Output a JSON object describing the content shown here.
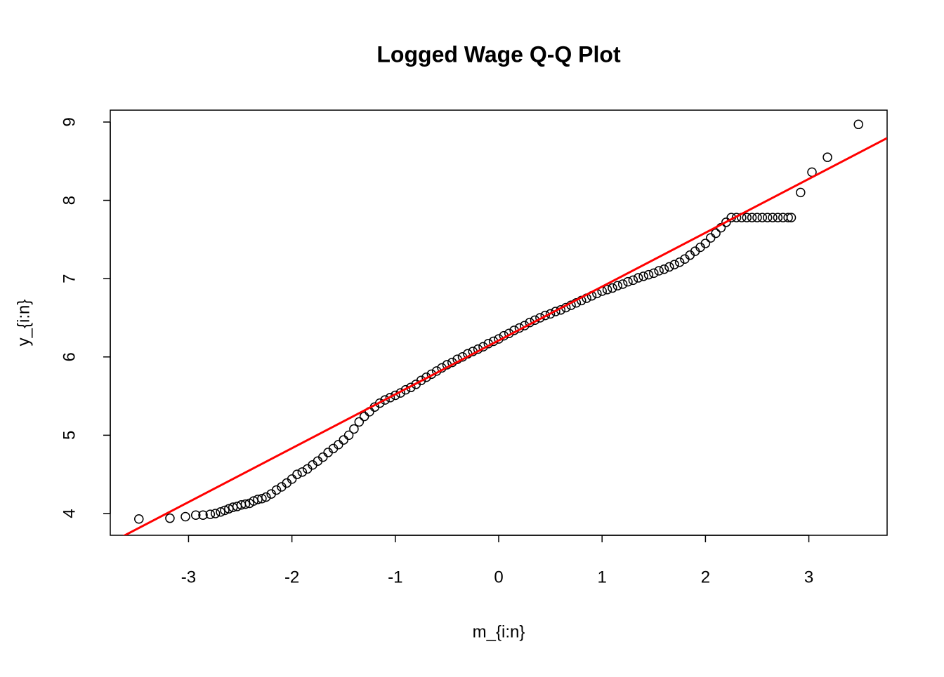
{
  "chart_data": {
    "type": "scatter",
    "title": "Logged Wage Q-Q Plot",
    "x_label": "m_{i:n}",
    "y_label": "y_{i:n}",
    "xlim": [
      -3.757,
      3.757
    ],
    "ylim": [
      3.722,
      9.152
    ],
    "xticks": [
      -3,
      -2,
      -1,
      0,
      1,
      2,
      3
    ],
    "yticks": [
      4,
      5,
      6,
      7,
      8,
      9
    ],
    "series": [
      {
        "color": "#000000",
        "x": [
          -3.48,
          -3.18,
          -3.03,
          -2.93,
          -2.86,
          -2.79,
          -2.74,
          -2.69,
          -2.65,
          -2.61,
          -2.57,
          -2.53,
          -2.49,
          -2.45,
          -2.41,
          -2.37,
          -2.33,
          -2.29,
          -2.25,
          -2.2,
          -2.15,
          -2.1,
          -2.05,
          -2.0,
          -1.95,
          -1.9,
          -1.85,
          -1.8,
          -1.75,
          -1.7,
          -1.65,
          -1.6,
          -1.55,
          -1.5,
          -1.45,
          -1.4,
          -1.35,
          -1.3,
          -1.25,
          -1.2,
          -1.15,
          -1.1,
          -1.05,
          -1.0,
          -0.95,
          -0.9,
          -0.85,
          -0.8,
          -0.75,
          -0.7,
          -0.65,
          -0.6,
          -0.55,
          -0.5,
          -0.45,
          -0.4,
          -0.35,
          -0.3,
          -0.25,
          -0.2,
          -0.15,
          -0.1,
          -0.05,
          0,
          0.05,
          0.1,
          0.15,
          0.2,
          0.25,
          0.3,
          0.35,
          0.4,
          0.45,
          0.5,
          0.55,
          0.6,
          0.65,
          0.7,
          0.75,
          0.8,
          0.85,
          0.9,
          0.95,
          1.0,
          1.05,
          1.1,
          1.15,
          1.2,
          1.25,
          1.3,
          1.35,
          1.4,
          1.45,
          1.5,
          1.55,
          1.6,
          1.65,
          1.7,
          1.75,
          1.8,
          1.85,
          1.9,
          1.95,
          2.0,
          2.05,
          2.1,
          2.15,
          2.2,
          2.25,
          2.3,
          2.35,
          2.4,
          2.45,
          2.5,
          2.55,
          2.6,
          2.65,
          2.7,
          2.75,
          2.8,
          2.83,
          2.92,
          3.03,
          3.18,
          3.48
        ],
        "values": [
          3.93,
          3.94,
          3.96,
          3.98,
          3.98,
          3.99,
          4.0,
          4.02,
          4.04,
          4.06,
          4.08,
          4.09,
          4.11,
          4.12,
          4.13,
          4.16,
          4.18,
          4.19,
          4.21,
          4.25,
          4.3,
          4.34,
          4.39,
          4.44,
          4.5,
          4.53,
          4.57,
          4.62,
          4.67,
          4.72,
          4.78,
          4.83,
          4.88,
          4.94,
          5.0,
          5.08,
          5.17,
          5.24,
          5.3,
          5.36,
          5.41,
          5.45,
          5.48,
          5.51,
          5.54,
          5.58,
          5.61,
          5.65,
          5.7,
          5.74,
          5.78,
          5.82,
          5.86,
          5.9,
          5.93,
          5.97,
          6.0,
          6.04,
          6.07,
          6.1,
          6.13,
          6.17,
          6.2,
          6.23,
          6.27,
          6.3,
          6.34,
          6.37,
          6.4,
          6.44,
          6.47,
          6.5,
          6.53,
          6.55,
          6.58,
          6.6,
          6.63,
          6.66,
          6.69,
          6.72,
          6.75,
          6.78,
          6.81,
          6.84,
          6.86,
          6.88,
          6.91,
          6.93,
          6.96,
          6.98,
          7.01,
          7.03,
          7.05,
          7.07,
          7.1,
          7.12,
          7.15,
          7.18,
          7.21,
          7.25,
          7.3,
          7.35,
          7.4,
          7.45,
          7.52,
          7.58,
          7.65,
          7.72,
          7.78,
          7.78,
          7.78,
          7.78,
          7.78,
          7.78,
          7.78,
          7.78,
          7.78,
          7.78,
          7.78,
          7.78,
          7.78,
          8.1,
          8.36,
          8.55,
          8.97
        ]
      }
    ],
    "reference_line": {
      "color": "#ff0000",
      "intercept": 6.21,
      "slope": 0.688
    }
  }
}
